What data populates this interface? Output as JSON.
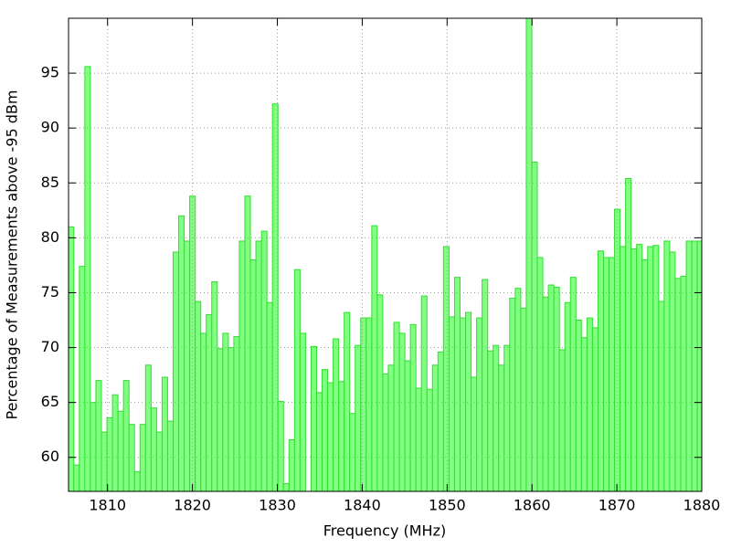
{
  "chart_data": {
    "type": "bar",
    "xlabel": "Frequency (MHz)",
    "ylabel": "Percentage of Measurements above -95 dBm",
    "x": [
      1805.7,
      1806.35,
      1807.0,
      1807.65,
      1808.3,
      1808.95,
      1809.6,
      1810.25,
      1810.9,
      1811.55,
      1812.2,
      1812.85,
      1813.5,
      1814.15,
      1814.8,
      1815.45,
      1816.1,
      1816.75,
      1817.4,
      1818.05,
      1818.7,
      1819.35,
      1820.0,
      1820.65,
      1821.3,
      1821.95,
      1822.6,
      1823.25,
      1823.9,
      1824.55,
      1825.2,
      1825.85,
      1826.5,
      1827.15,
      1827.8,
      1828.45,
      1829.1,
      1829.75,
      1830.4,
      1831.05,
      1831.7,
      1832.35,
      1833.0,
      1833.65,
      1834.3,
      1834.95,
      1835.6,
      1836.25,
      1836.9,
      1837.55,
      1838.2,
      1838.85,
      1839.5,
      1840.15,
      1840.8,
      1841.45,
      1842.1,
      1842.75,
      1843.4,
      1844.05,
      1844.7,
      1845.35,
      1846.0,
      1846.65,
      1847.3,
      1847.95,
      1848.6,
      1849.25,
      1849.9,
      1850.55,
      1851.2,
      1851.85,
      1852.5,
      1853.15,
      1853.8,
      1854.45,
      1855.1,
      1855.75,
      1856.4,
      1857.05,
      1857.7,
      1858.35,
      1859.0,
      1859.65,
      1860.3,
      1860.95,
      1861.6,
      1862.25,
      1862.9,
      1863.55,
      1864.2,
      1864.85,
      1865.5,
      1866.15,
      1866.8,
      1867.45,
      1868.1,
      1868.75,
      1869.4,
      1870.05,
      1870.7,
      1871.35,
      1872.0,
      1872.65,
      1873.3,
      1873.95,
      1874.6,
      1875.25,
      1875.9,
      1876.55,
      1877.2,
      1877.85,
      1878.5,
      1879.15,
      1879.8
    ],
    "values": [
      81,
      59.3,
      77.4,
      95.6,
      65,
      67,
      62.3,
      63.6,
      65.7,
      64.2,
      67,
      63,
      58.7,
      63,
      68.4,
      64.5,
      62.3,
      67.3,
      63.3,
      78.7,
      82,
      79.7,
      83.8,
      74.2,
      71.3,
      73,
      76,
      69.9,
      71.3,
      70,
      71,
      79.7,
      83.8,
      78,
      79.7,
      80.6,
      74.1,
      92.2,
      65.1,
      57.6,
      61.6,
      77.1,
      71.3,
      56.9,
      70.1,
      65.9,
      68,
      66.8,
      70.8,
      66.9,
      73.2,
      64,
      70.2,
      72.7,
      72.7,
      81.1,
      74.8,
      67.6,
      68.4,
      72.3,
      71.3,
      68.8,
      72.1,
      66.3,
      74.7,
      66.2,
      68.4,
      69.6,
      79.2,
      72.8,
      76.4,
      72.7,
      73.2,
      67.3,
      72.7,
      76.2,
      69.7,
      70.2,
      68.4,
      70.2,
      74.5,
      75.4,
      73.6,
      100,
      86.9,
      78.2,
      74.6,
      75.7,
      75.5,
      69.8,
      74.1,
      76.4,
      72.5,
      70.9,
      72.7,
      71.8,
      78.8,
      78.2,
      78.2,
      82.6,
      79.2,
      85.4,
      79,
      79.4,
      78,
      79.2,
      79.3,
      74.2,
      79.7,
      78.7,
      76.3,
      76.5,
      79.7,
      79.7,
      79.7
    ],
    "color": "#80ff80",
    "edge_color": "#33dd33",
    "xlim": [
      1805.4,
      1880
    ],
    "ylim": [
      56.9,
      100
    ],
    "xticks": [
      1810,
      1820,
      1830,
      1840,
      1850,
      1860,
      1870,
      1880
    ],
    "yticks": [
      60,
      65,
      70,
      75,
      80,
      85,
      90,
      95
    ],
    "grid": true
  }
}
